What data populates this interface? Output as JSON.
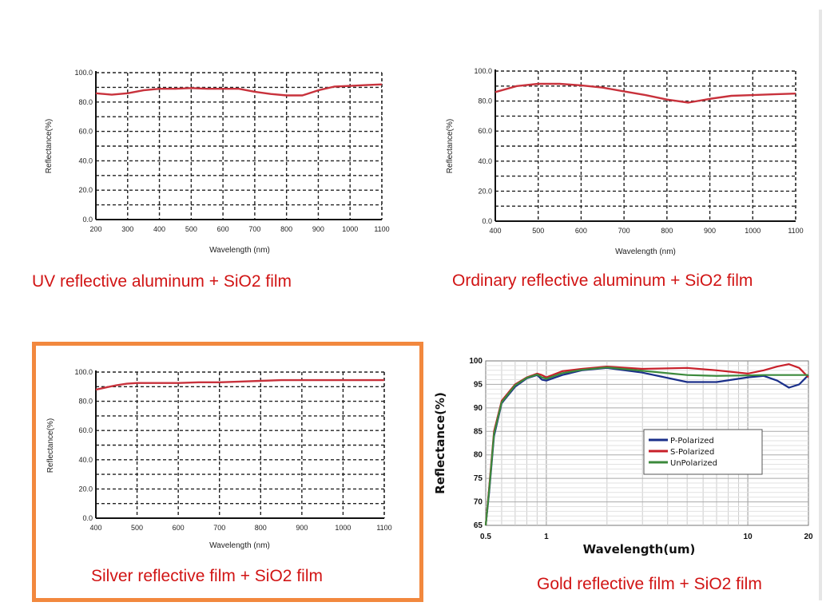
{
  "chart_data": [
    {
      "id": "uv-al",
      "type": "line",
      "title": "",
      "caption": "UV reflective aluminum + SiO2 film",
      "xlabel": "Wavelength (nm)",
      "ylabel": "Reflectance(%)",
      "xlim": [
        200,
        1100
      ],
      "ylim": [
        0,
        100
      ],
      "xticks": [
        "200",
        "300",
        "400",
        "500",
        "600",
        "700",
        "800",
        "900",
        "1000",
        "1100"
      ],
      "yticks": [
        "0.0",
        "20.0",
        "40.0",
        "60.0",
        "80.0",
        "100.0"
      ],
      "grid": true,
      "color": "#c8323c",
      "series": [
        {
          "x": [
            200,
            250,
            300,
            350,
            400,
            450,
            500,
            550,
            600,
            650,
            700,
            750,
            800,
            850,
            900,
            950,
            1000,
            1050,
            1100
          ],
          "y": [
            86,
            85,
            86,
            88,
            89,
            89,
            89.5,
            89,
            89,
            89,
            87,
            85.5,
            84.5,
            84.5,
            88,
            90.5,
            91,
            91.5,
            92
          ]
        }
      ]
    },
    {
      "id": "ord-al",
      "type": "line",
      "title": "",
      "caption": "Ordinary reflective aluminum + SiO2  film",
      "xlabel": "Wavelength (nm)",
      "ylabel": "Reflectance(%)",
      "xlim": [
        400,
        1100
      ],
      "ylim": [
        0,
        100
      ],
      "xticks": [
        "400",
        "500",
        "600",
        "700",
        "800",
        "900",
        "1000",
        "1100"
      ],
      "yticks": [
        "0.0",
        "20.0",
        "40.0",
        "60.0",
        "80.0",
        "100.0"
      ],
      "grid": true,
      "color": "#c8323c",
      "series": [
        {
          "x": [
            400,
            450,
            500,
            550,
            600,
            650,
            700,
            750,
            800,
            850,
            900,
            950,
            1000,
            1050,
            1100
          ],
          "y": [
            86,
            90,
            91.5,
            91.5,
            90.5,
            89,
            86.5,
            84,
            81,
            79,
            81.5,
            83.5,
            84,
            84.5,
            85
          ]
        }
      ]
    },
    {
      "id": "silver",
      "type": "line",
      "title": "",
      "caption": "Silver reflective film + SiO2   film",
      "xlabel": "Wavelength (nm)",
      "ylabel": "Reflectance(%)",
      "xlim": [
        400,
        1100
      ],
      "ylim": [
        0,
        100
      ],
      "xticks": [
        "400",
        "500",
        "600",
        "700",
        "800",
        "900",
        "1000",
        "1100"
      ],
      "yticks": [
        "0.0",
        "20.0",
        "40.0",
        "60.0",
        "80.0",
        "100.0"
      ],
      "grid": true,
      "color": "#c8323c",
      "series": [
        {
          "x": [
            400,
            425,
            450,
            475,
            500,
            550,
            600,
            650,
            700,
            750,
            800,
            850,
            900,
            950,
            1000,
            1050,
            1100
          ],
          "y": [
            88,
            89.5,
            91,
            92,
            92.5,
            92.5,
            92.5,
            93,
            93,
            93.5,
            94,
            94.5,
            94.5,
            94.5,
            94.5,
            94.5,
            94.5
          ]
        }
      ]
    },
    {
      "id": "gold",
      "type": "line",
      "title": "",
      "caption": "Gold reflective film + SiO2 film",
      "xlabel": "Wavelength(um)",
      "ylabel": "Reflectance(%)",
      "xscale": "log",
      "xlim": [
        0.5,
        20
      ],
      "ylim": [
        65,
        100
      ],
      "xticks": [
        "0.5",
        "1",
        "10",
        "20"
      ],
      "yticks": [
        "65",
        "70",
        "75",
        "80",
        "85",
        "90",
        "95",
        "100"
      ],
      "grid": true,
      "legend": "center-right",
      "series": [
        {
          "name": "P-Polarized",
          "color": "#1a2f8a",
          "x": [
            0.5,
            0.52,
            0.55,
            0.6,
            0.7,
            0.8,
            0.9,
            0.95,
            1.0,
            1.2,
            1.5,
            2,
            3,
            5,
            7,
            10,
            12,
            14,
            16,
            18,
            20
          ],
          "y": [
            65,
            72,
            84,
            91,
            94.5,
            96.3,
            97,
            96,
            95.8,
            97,
            98,
            98.5,
            97.5,
            95.5,
            95.5,
            96.5,
            96.8,
            95.8,
            94.3,
            95,
            97
          ]
        },
        {
          "name": "S-Polarized",
          "color": "#c8202a",
          "x": [
            0.5,
            0.52,
            0.55,
            0.6,
            0.7,
            0.8,
            0.9,
            0.95,
            1.0,
            1.2,
            1.5,
            2,
            3,
            5,
            7,
            10,
            12,
            14,
            16,
            18,
            20
          ],
          "y": [
            65,
            73,
            85,
            91.5,
            95,
            96.5,
            97.3,
            97,
            96.5,
            97.8,
            98.3,
            98.8,
            98.3,
            98.5,
            98,
            97.3,
            98,
            98.8,
            99.3,
            98.5,
            96.5
          ]
        },
        {
          "name": "UnPolarized",
          "color": "#3c8a3c",
          "x": [
            0.5,
            0.52,
            0.55,
            0.6,
            0.7,
            0.8,
            0.9,
            0.95,
            1.0,
            1.2,
            1.5,
            2,
            3,
            5,
            7,
            10,
            12,
            14,
            16,
            18,
            20
          ],
          "y": [
            65,
            72.5,
            84.5,
            91.2,
            94.8,
            96.4,
            97.1,
            96.5,
            96.2,
            97.4,
            98.1,
            98.6,
            97.9,
            97,
            96.8,
            96.9,
            97,
            97,
            97,
            97,
            97
          ]
        }
      ]
    }
  ]
}
